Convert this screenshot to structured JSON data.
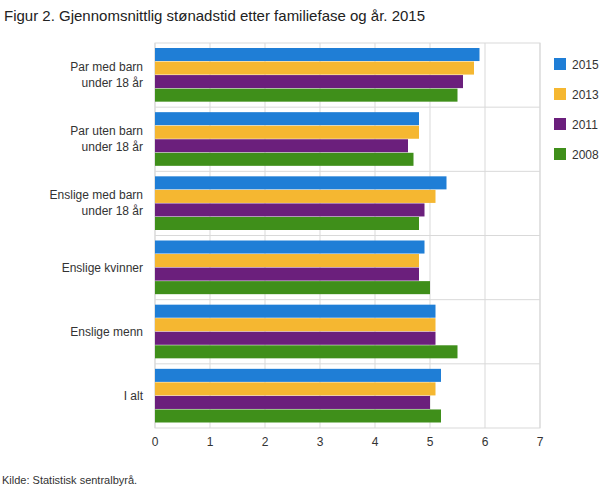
{
  "chart_data": {
    "type": "bar",
    "orientation": "horizontal",
    "title": "Figur 2. Gjennomsnittlig stønadstid etter familiefase og år. 2015",
    "source": "Kilde: Statistisk sentralbyrå.",
    "categories": [
      "Par med barn under 18 år",
      "Par uten barn under 18 år",
      "Enslige med barn under 18 år",
      "Enslige kvinner",
      "Enslige menn",
      "I alt"
    ],
    "series": [
      {
        "name": "2015",
        "color": "#1f7ed6",
        "values": [
          5.9,
          4.8,
          5.3,
          4.9,
          5.1,
          5.2
        ]
      },
      {
        "name": "2013",
        "color": "#f5b731",
        "values": [
          5.8,
          4.8,
          5.1,
          4.8,
          5.1,
          5.1
        ]
      },
      {
        "name": "2011",
        "color": "#6b1f7c",
        "values": [
          5.6,
          4.6,
          4.9,
          4.8,
          5.1,
          5.0
        ]
      },
      {
        "name": "2008",
        "color": "#3f8f1a",
        "values": [
          5.5,
          4.7,
          4.8,
          5.0,
          5.5,
          5.2
        ]
      }
    ],
    "xlim": [
      0,
      7
    ],
    "xticks": [
      0,
      1,
      2,
      3,
      4,
      5,
      6,
      7
    ],
    "grid": true,
    "legend": "right"
  }
}
